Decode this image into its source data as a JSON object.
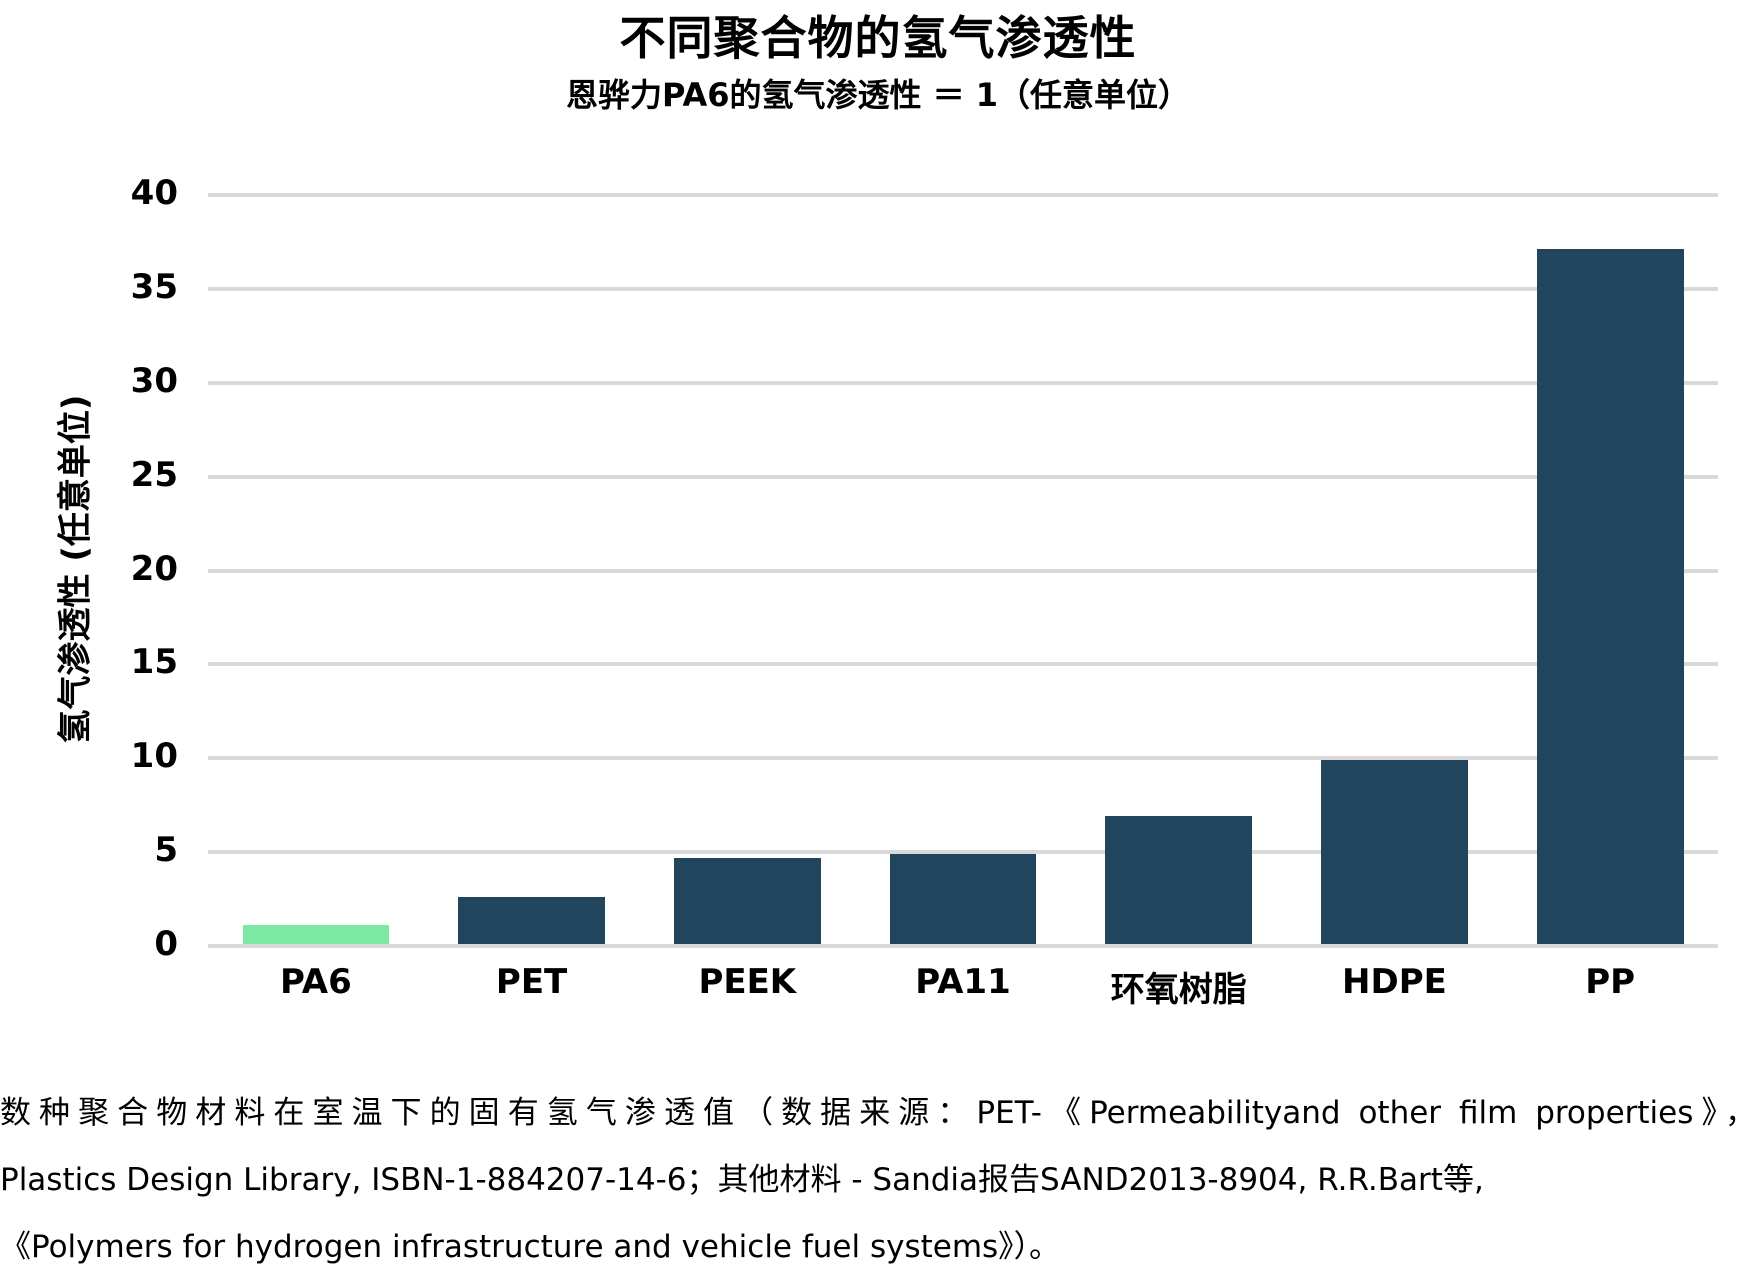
{
  "chart_data": {
    "type": "bar",
    "title": "不同聚合物的氢气渗透性",
    "subtitle": "恩骅力PA6的氢气渗透性 ＝ 1（任意单位）",
    "categories": [
      "PA6",
      "PET",
      "PEEK",
      "PA11",
      "环氧树脂",
      "HDPE",
      "PP"
    ],
    "values": [
      1,
      2.5,
      4.6,
      4.8,
      6.8,
      9.8,
      37
    ],
    "xlabel": "",
    "ylabel": "氢气渗透性 (任意单位)",
    "ylim": [
      0,
      40
    ],
    "yticks": [
      0,
      5,
      10,
      15,
      20,
      25,
      30,
      35,
      40
    ],
    "grid": true,
    "legend_position": "none",
    "colors": {
      "bar": "#21455C",
      "highlight": "#7DE8A2",
      "gridline": "#D9D9D9",
      "text": "#000000"
    },
    "highlight_index": 0,
    "highlight_category": "PA6"
  },
  "caption": {
    "lines": [
      "数种聚合物材料在室温下的固有氢气渗透值（数据来源：PET-《Permeabilityand other film properties》，",
      "Plastics Design Library, ISBN-1-884207-14-6；其他材料 - Sandia报告SAND2013-8904, R.R.Bart等,",
      "《Polymers for hydrogen infrastructure and vehicle fuel systems》）。"
    ]
  }
}
